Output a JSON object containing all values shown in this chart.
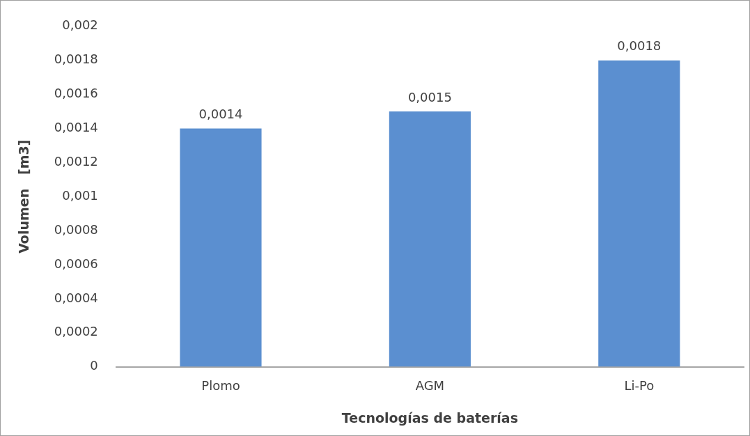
{
  "chart_data": {
    "type": "bar",
    "xlabel": "Tecnologías de baterías",
    "ylabel": "Volumen   [m3]",
    "categories": [
      "Plomo",
      "AGM",
      "Li-Po"
    ],
    "values": [
      0.0014,
      0.0015,
      0.0018
    ],
    "color": "#5b8fd0",
    "value_labels": [
      "0,0014",
      "0,0015",
      "0,0018"
    ],
    "ylim": [
      0,
      0.002
    ],
    "yticks": [
      {
        "value": 0,
        "label": "0"
      },
      {
        "value": 0.0002,
        "label": "0,0002"
      },
      {
        "value": 0.0004,
        "label": "0,0004"
      },
      {
        "value": 0.0006,
        "label": "0,0006"
      },
      {
        "value": 0.0008,
        "label": "0,0008"
      },
      {
        "value": 0.001,
        "label": "0,001"
      },
      {
        "value": 0.0012,
        "label": "0,0012"
      },
      {
        "value": 0.0014,
        "label": "0,0014"
      },
      {
        "value": 0.0016,
        "label": "0,0016"
      },
      {
        "value": 0.0018,
        "label": "0,0018"
      },
      {
        "value": 0.002,
        "label": "0,002"
      }
    ],
    "grid": false,
    "legend": false
  }
}
